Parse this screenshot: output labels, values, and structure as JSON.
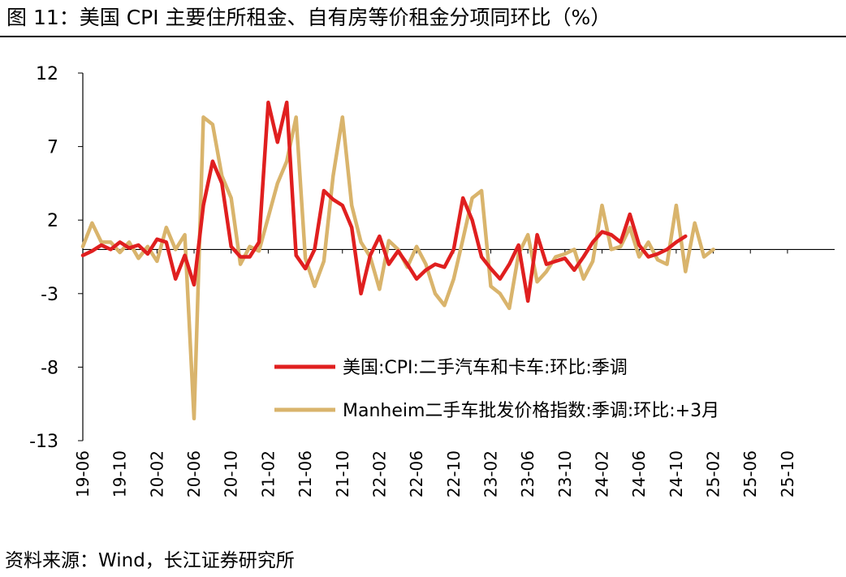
{
  "title": "图 11：美国 CPI 主要住所租金、自有房等价租金分项同环比（%）",
  "source": "资料来源：Wind，长江证券研究所",
  "chart_data": {
    "type": "line",
    "title": "美国 CPI 主要住所租金、自有房等价租金分项同环比（%）",
    "xlabel": "",
    "ylabel": "",
    "ylim": [
      -13,
      12
    ],
    "yticks": [
      12,
      7,
      2,
      -3,
      -8,
      -13
    ],
    "xtick_labels": [
      "19-06",
      "19-10",
      "20-02",
      "20-06",
      "20-10",
      "21-02",
      "21-06",
      "21-10",
      "22-02",
      "22-06",
      "22-10",
      "23-02",
      "23-06",
      "23-10",
      "24-02",
      "24-06",
      "24-10",
      "25-02",
      "25-06",
      "25-10"
    ],
    "legend_position": "center-bottom",
    "x_start": "19-06",
    "series": [
      {
        "name": "美国:CPI:二手汽车和卡车:环比:季调",
        "color": "#e01f1f",
        "values": [
          -0.4,
          -0.1,
          0.3,
          0.0,
          0.5,
          0.1,
          0.3,
          -0.3,
          0.7,
          0.5,
          -2.0,
          -0.4,
          -2.4,
          3.0,
          6.0,
          4.5,
          0.2,
          -0.5,
          -0.5,
          0.5,
          10.0,
          7.3,
          10.0,
          -0.4,
          -1.3,
          0.0,
          4.0,
          3.4,
          3.0,
          1.5,
          -3.0,
          -0.4,
          0.9,
          -1.0,
          -0.1,
          -1.0,
          -2.0,
          -1.4,
          -1.0,
          -1.2,
          0.0,
          3.5,
          2.0,
          -0.5,
          -1.3,
          -2.0,
          -1.0,
          0.3,
          -3.5,
          1.0,
          -1.0,
          -0.8,
          -0.6,
          -1.4,
          -0.5,
          0.5,
          1.2,
          1.0,
          0.5,
          2.4,
          0.3,
          -0.5,
          -0.3,
          0.0,
          0.5,
          0.9
        ]
      },
      {
        "name": "Manheim二手车批发价格指数:季调:环比:+3月",
        "color": "#d9b46c",
        "values": [
          0.2,
          1.8,
          0.5,
          0.5,
          -0.2,
          0.5,
          -0.6,
          0.2,
          -0.8,
          1.5,
          0.0,
          1.0,
          -11.5,
          9.0,
          8.5,
          5.0,
          3.5,
          -1.0,
          0.2,
          -0.1,
          2.2,
          4.5,
          6.0,
          9.0,
          -0.6,
          -2.5,
          -0.8,
          5.0,
          9.0,
          3.0,
          0.5,
          -0.5,
          -2.7,
          0.6,
          0.0,
          -1.2,
          0.2,
          -1.0,
          -3.0,
          -3.8,
          -2.0,
          0.7,
          3.5,
          4.0,
          -2.5,
          -3.0,
          -4.0,
          -0.3,
          1.0,
          -2.2,
          -1.5,
          -0.5,
          -0.3,
          0.0,
          -2.0,
          -0.8,
          3.0,
          0.0,
          0.2,
          1.5,
          -0.5,
          0.5,
          -0.7,
          -1.0,
          3.0,
          -1.5,
          1.8,
          -0.5,
          0.0
        ]
      }
    ]
  }
}
